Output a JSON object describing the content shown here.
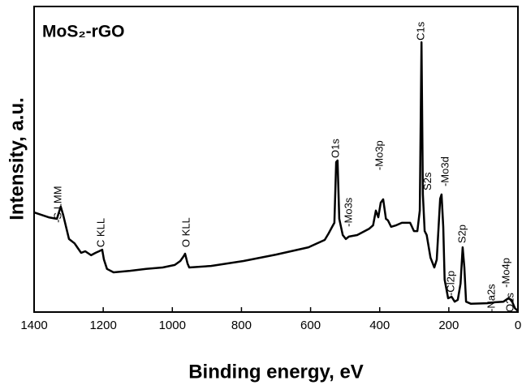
{
  "chart_data": {
    "type": "line",
    "title": "MoS₂-rGO",
    "xlabel": "Binding energy, eV",
    "ylabel": "Intensity, a.u.",
    "x": [
      1400,
      1358,
      1334,
      1323,
      1316,
      1299,
      1283,
      1275,
      1264,
      1252,
      1235,
      1222,
      1212,
      1203,
      1198,
      1189,
      1170,
      1122,
      1076,
      1028,
      993,
      977,
      967,
      963,
      956,
      951,
      888,
      794,
      700,
      606,
      559,
      548,
      535,
      531,
      526,
      522,
      517,
      507,
      498,
      489,
      465,
      430,
      419,
      411,
      404,
      397,
      390,
      382,
      376,
      367,
      352,
      336,
      312,
      301,
      291,
      284,
      279,
      275,
      270,
      264,
      253,
      242,
      235,
      225,
      221,
      216,
      212,
      202,
      192,
      183,
      174,
      166,
      160,
      155,
      150,
      136,
      89,
      66,
      42,
      28,
      19,
      9,
      0
    ],
    "values": [
      32.6,
      31.0,
      30.5,
      34.5,
      31.8,
      23.9,
      22.5,
      21.2,
      19.4,
      19.9,
      18.6,
      19.4,
      19.9,
      20.4,
      17.2,
      14.1,
      13.0,
      13.5,
      14.1,
      14.6,
      15.4,
      16.7,
      18.3,
      19.1,
      15.9,
      14.6,
      15.1,
      16.7,
      18.8,
      21.2,
      23.6,
      25.7,
      28.4,
      29.2,
      49.1,
      49.6,
      30.5,
      25.2,
      23.9,
      24.7,
      25.2,
      27.3,
      28.4,
      33.2,
      31.0,
      35.8,
      36.9,
      30.5,
      30.0,
      27.9,
      28.4,
      29.2,
      29.2,
      26.5,
      26.5,
      33.2,
      88.3,
      38.5,
      26.5,
      25.2,
      17.8,
      14.6,
      17.2,
      37.1,
      38.5,
      27.9,
      10.6,
      4.5,
      5.0,
      3.4,
      4.0,
      9.3,
      21.2,
      14.6,
      3.4,
      2.7,
      2.9,
      3.2,
      3.4,
      4.5,
      4.0,
      1.3,
      0.3
    ],
    "color": "#000000",
    "xlim": [
      1400,
      0
    ],
    "xticks": [
      1400,
      1200,
      1000,
      800,
      600,
      400,
      200,
      0
    ],
    "ylim": [
      0,
      100
    ],
    "annotations": [
      {
        "text": "-S LMM",
        "x": 1329,
        "y": 29.2
      },
      {
        "text": "C KLL",
        "x": 1205,
        "y": 21.2
      },
      {
        "text": "O KLL",
        "x": 958,
        "y": 21.2
      },
      {
        "text": "O1s",
        "x": 526,
        "y": 50.4
      },
      {
        "text": "-Mo3s",
        "x": 489,
        "y": 27.9
      },
      {
        "text": "-Mo3p",
        "x": 399,
        "y": 46.4
      },
      {
        "text": "C1s",
        "x": 279,
        "y": 88.9
      },
      {
        "text": "S2s",
        "x": 260,
        "y": 39.8
      },
      {
        "text": "-Mo3d",
        "x": 209,
        "y": 41.1
      },
      {
        "text": "-Cl2p",
        "x": 192,
        "y": 5.3
      },
      {
        "text": "S2p",
        "x": 160,
        "y": 22.5
      },
      {
        "text": "-Na2s",
        "x": 75,
        "y": 0
      },
      {
        "text": "O2s",
        "x": 21,
        "y": 0
      },
      {
        "text": "-Mo4p",
        "x": 33,
        "y": 8.0
      }
    ]
  }
}
